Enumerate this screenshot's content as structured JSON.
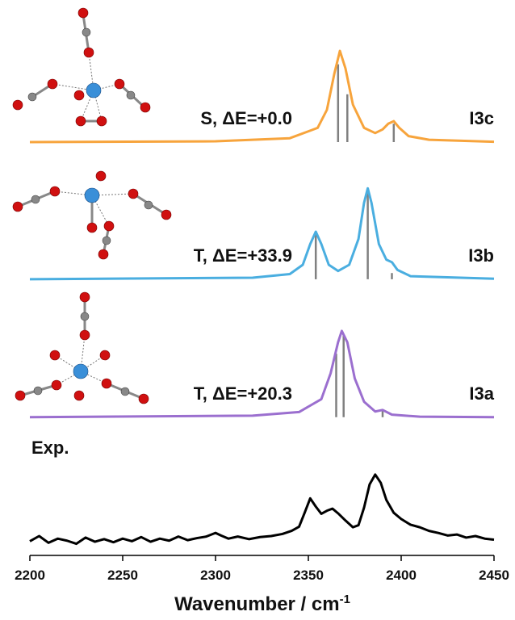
{
  "chart_data": {
    "type": "line",
    "x_label": "Wavenumber / cm",
    "x_label_sup": "-1",
    "xlim": [
      2200,
      2450
    ],
    "xticks": [
      2200,
      2250,
      2300,
      2350,
      2400,
      2450
    ],
    "ylim": [
      0,
      100
    ],
    "series": [
      {
        "name": "I3c",
        "label": "S, ΔE=+0.0",
        "color": "#f7a43c",
        "x": [
          2200,
          2300,
          2340,
          2355,
          2360,
          2364,
          2367,
          2370,
          2374,
          2380,
          2386,
          2390,
          2393,
          2396,
          2399,
          2404,
          2415,
          2450
        ],
        "values": [
          78.75,
          78.9,
          79.5,
          81.5,
          85,
          92,
          96.4,
          93,
          86,
          81.5,
          80.5,
          81.2,
          82.3,
          82.8,
          81.5,
          79.9,
          79.2,
          78.8
        ],
        "sticks": {
          "x": [
            2366,
            2371,
            2396
          ],
          "values": [
            93.8,
            88,
            82.3
          ]
        }
      },
      {
        "name": "I3b",
        "label": "T, ΔE=+33.9",
        "color": "#4aaee0",
        "x": [
          2200,
          2320,
          2340,
          2347,
          2351,
          2354,
          2357,
          2361,
          2366,
          2372,
          2377,
          2380,
          2382,
          2384,
          2388,
          2392,
          2395,
          2398,
          2405,
          2450
        ],
        "values": [
          52.2,
          52.5,
          53.2,
          55,
          59,
          61.4,
          59,
          55,
          53.8,
          55,
          60,
          67,
          69.8,
          67,
          59,
          56,
          55.5,
          54,
          52.8,
          52.3
        ],
        "sticks": {
          "x": [
            2354,
            2382,
            2395
          ],
          "values": [
            60.9,
            69,
            53.4
          ]
        }
      },
      {
        "name": "I3a",
        "label": "T, ΔE=+20.3",
        "color": "#9b6fcf",
        "x": [
          2200,
          2320,
          2345,
          2357,
          2362,
          2366,
          2368,
          2371,
          2375,
          2380,
          2386,
          2390,
          2395,
          2410,
          2450
        ],
        "values": [
          25.5,
          25.8,
          26.5,
          29,
          34,
          40,
          42.2,
          40,
          33,
          28.5,
          26.6,
          26.9,
          26,
          25.6,
          25.5
        ],
        "sticks": {
          "x": [
            2365,
            2369,
            2390
          ],
          "values": [
            37.8,
            41.3,
            26.7
          ]
        }
      },
      {
        "name": "Exp.",
        "color": "#000000",
        "x": [
          2200,
          2205,
          2210,
          2215,
          2220,
          2225,
          2230,
          2235,
          2240,
          2245,
          2250,
          2255,
          2260,
          2265,
          2270,
          2275,
          2280,
          2285,
          2290,
          2295,
          2300,
          2303,
          2307,
          2312,
          2318,
          2324,
          2330,
          2336,
          2341,
          2345,
          2348,
          2351,
          2354,
          2357,
          2360,
          2363,
          2366,
          2370,
          2374,
          2377,
          2380,
          2383,
          2386,
          2389,
          2392,
          2396,
          2400,
          2405,
          2410,
          2415,
          2420,
          2425,
          2430,
          2435,
          2440,
          2445,
          2450
        ],
        "values": [
          1.5,
          2.5,
          1.2,
          2,
          1.6,
          1,
          2.2,
          1.4,
          1.9,
          1.3,
          2,
          1.5,
          2.3,
          1.4,
          2,
          1.6,
          2.4,
          1.7,
          2.1,
          2.4,
          3.1,
          2.6,
          2,
          2.4,
          1.9,
          2.3,
          2.5,
          2.9,
          3.5,
          4.3,
          7,
          9.8,
          8.2,
          6.8,
          7.4,
          7.8,
          6.9,
          5.5,
          4.2,
          4.6,
          8,
          12.5,
          14.4,
          12.8,
          9.5,
          7,
          5.8,
          4.7,
          4.2,
          3.5,
          3.1,
          2.6,
          2.8,
          2.2,
          2.5,
          2,
          1.8
        ]
      }
    ]
  }
}
